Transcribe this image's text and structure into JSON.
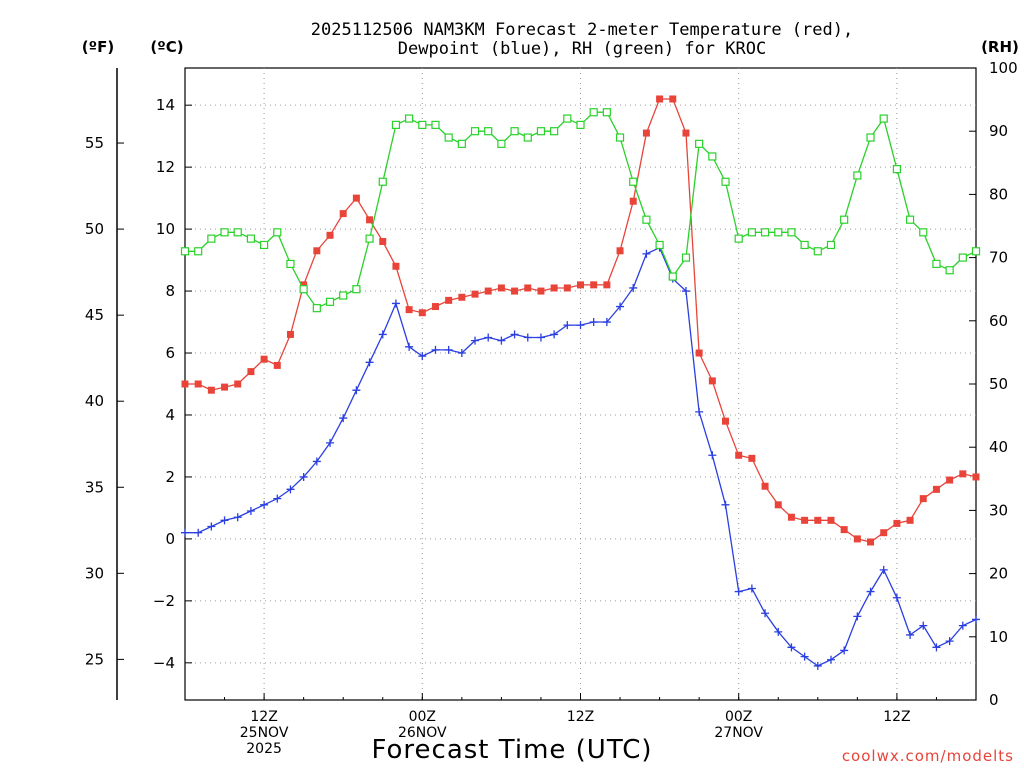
{
  "chart_data": {
    "type": "line",
    "title_line1": "2025112506 NAM3KM Forecast 2-meter Temperature (red),",
    "title_line2": "Dewpoint (blue), RH (green) for KROC",
    "left_unit_f": "(ºF)",
    "left_unit_c": "(ºC)",
    "right_unit": "(RH)",
    "xlabel": "Forecast Time (UTC)",
    "credit": "coolwx.com/modelts",
    "x_range_hours": [
      0,
      60
    ],
    "celsius_range": [
      -5.2,
      15.2
    ],
    "rh_range": [
      0,
      100
    ],
    "celsius_ticks": [
      "−4",
      "−2",
      "0",
      "2",
      "4",
      "6",
      "8",
      "10",
      "12",
      "14"
    ],
    "celsius_tick_values": [
      -4,
      -2,
      0,
      2,
      4,
      6,
      8,
      10,
      12,
      14
    ],
    "fahrenheit_ticks": [
      "25",
      "30",
      "35",
      "40",
      "45",
      "50",
      "55"
    ],
    "fahrenheit_tick_values": [
      25,
      30,
      35,
      40,
      45,
      50,
      55
    ],
    "rh_ticks": [
      "0",
      "10",
      "20",
      "30",
      "40",
      "50",
      "60",
      "70",
      "80",
      "90",
      "100"
    ],
    "rh_tick_values": [
      0,
      10,
      20,
      30,
      40,
      50,
      60,
      70,
      80,
      90,
      100
    ],
    "x_ticks": [
      {
        "hour": 6,
        "lines": [
          "12Z",
          "25NOV",
          "2025"
        ]
      },
      {
        "hour": 18,
        "lines": [
          "00Z",
          "26NOV"
        ]
      },
      {
        "hour": 30,
        "lines": [
          "12Z"
        ]
      },
      {
        "hour": 42,
        "lines": [
          "00Z",
          "27NOV"
        ]
      },
      {
        "hour": 54,
        "lines": [
          "12Z"
        ]
      }
    ],
    "hours": [
      0,
      1,
      2,
      3,
      4,
      5,
      6,
      7,
      8,
      9,
      10,
      11,
      12,
      13,
      14,
      15,
      16,
      17,
      18,
      19,
      20,
      21,
      22,
      23,
      24,
      25,
      26,
      27,
      28,
      29,
      30,
      31,
      32,
      33,
      34,
      35,
      36,
      37,
      38,
      39,
      40,
      41,
      42,
      43,
      44,
      45,
      46,
      47,
      48,
      49,
      50,
      51,
      52,
      53,
      54,
      55,
      56,
      57,
      58,
      59,
      60
    ],
    "series": [
      {
        "name": "2-meter Temperature",
        "unit": "°C",
        "color": "#e8443a",
        "marker": "filled-square",
        "values": [
          5.0,
          5.0,
          4.8,
          4.9,
          5.0,
          5.4,
          5.8,
          5.6,
          6.6,
          8.2,
          9.3,
          9.8,
          10.5,
          11.0,
          10.3,
          9.6,
          8.8,
          7.4,
          7.3,
          7.5,
          7.7,
          7.8,
          7.9,
          8.0,
          8.1,
          8.0,
          8.1,
          8.0,
          8.1,
          8.1,
          8.2,
          8.2,
          8.2,
          9.3,
          10.9,
          13.1,
          14.2,
          14.2,
          13.1,
          6.0,
          5.1,
          3.8,
          2.7,
          2.6,
          1.7,
          1.1,
          0.7,
          0.6,
          0.6,
          0.6,
          0.3,
          0.0,
          -0.1,
          0.2,
          0.5,
          0.6,
          1.3,
          1.6,
          1.9,
          2.1,
          2.0
        ]
      },
      {
        "name": "Dewpoint",
        "unit": "°C",
        "color": "#2a3fe0",
        "marker": "plus",
        "values": [
          0.2,
          0.2,
          0.4,
          0.6,
          0.7,
          0.9,
          1.1,
          1.3,
          1.6,
          2.0,
          2.5,
          3.1,
          3.9,
          4.8,
          5.7,
          6.6,
          7.6,
          6.2,
          5.9,
          6.1,
          6.1,
          6.0,
          6.4,
          6.5,
          6.4,
          6.6,
          6.5,
          6.5,
          6.6,
          6.9,
          6.9,
          7.0,
          7.0,
          7.5,
          8.1,
          9.2,
          9.4,
          8.4,
          8.0,
          4.1,
          2.7,
          1.1,
          -1.7,
          -1.6,
          -2.4,
          -3.0,
          -3.5,
          -3.8,
          -4.1,
          -3.9,
          -3.6,
          -2.5,
          -1.7,
          -1.0,
          -1.9,
          -3.1,
          -2.8,
          -3.5,
          -3.3,
          -2.8,
          -2.6
        ]
      },
      {
        "name": "RH",
        "unit": "%",
        "color": "#2ad12a",
        "marker": "open-square",
        "values": [
          71,
          71,
          73,
          74,
          74,
          73,
          72,
          74,
          69,
          65,
          62,
          63,
          64,
          65,
          73,
          82,
          91,
          92,
          91,
          91,
          89,
          88,
          90,
          90,
          88,
          90,
          89,
          90,
          90,
          92,
          91,
          93,
          93,
          89,
          82,
          76,
          72,
          67,
          70,
          88,
          86,
          82,
          73,
          74,
          74,
          74,
          74,
          72,
          71,
          72,
          76,
          83,
          89,
          92,
          84,
          76,
          74,
          69,
          68,
          70,
          71
        ]
      }
    ]
  }
}
